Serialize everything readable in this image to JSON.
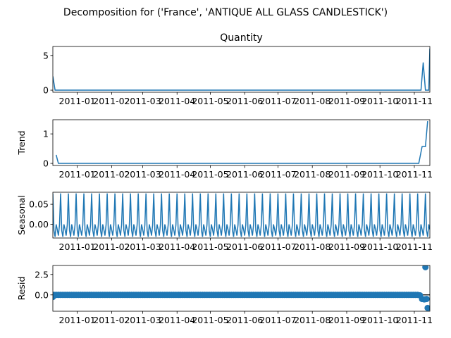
{
  "figure": {
    "suptitle": "Decomposition for ('France', 'ANTIQUE ALL GLASS CANDLESTICK')"
  },
  "chart_data": [
    {
      "type": "line",
      "name": "observed",
      "title": "Quantity",
      "ylabel": "",
      "color": "#1f77b4",
      "xlim": [
        "2010-12-10",
        "2011-11-15"
      ],
      "ylim": [
        -0.3,
        6.3
      ],
      "yticks": [
        {
          "value": 0,
          "label": "0"
        },
        {
          "value": 5,
          "label": "5"
        }
      ],
      "points": [
        {
          "x": "2010-12-10",
          "y": 2
        },
        {
          "x": "2010-12-12",
          "y": 0
        },
        {
          "x": "2011-11-07",
          "y": 0
        },
        {
          "x": "2011-11-09",
          "y": 4
        },
        {
          "x": "2011-11-11",
          "y": 0
        },
        {
          "x": "2011-11-14",
          "y": 0
        },
        {
          "x": "2011-11-15",
          "y": 6
        }
      ]
    },
    {
      "type": "line",
      "name": "trend",
      "title": "",
      "ylabel": "Trend",
      "color": "#1f77b4",
      "xlim": [
        "2010-12-10",
        "2011-11-15"
      ],
      "ylim": [
        -0.07,
        1.48
      ],
      "yticks": [
        {
          "value": 0,
          "label": "0"
        },
        {
          "value": 1,
          "label": "1"
        }
      ],
      "points": [
        {
          "x": "2010-12-13",
          "y": 0.29
        },
        {
          "x": "2010-12-14",
          "y": 0.14
        },
        {
          "x": "2010-12-15",
          "y": 0
        },
        {
          "x": "2011-11-05",
          "y": 0
        },
        {
          "x": "2011-11-08",
          "y": 0.57
        },
        {
          "x": "2011-11-11",
          "y": 0.57
        },
        {
          "x": "2011-11-13",
          "y": 1.43
        }
      ]
    },
    {
      "type": "line",
      "name": "seasonal",
      "title": "",
      "ylabel": "Seasonal",
      "color": "#1f77b4",
      "xlim": [
        "2010-12-10",
        "2011-11-15"
      ],
      "ylim": [
        -0.034,
        0.08
      ],
      "yticks": [
        {
          "value": 0,
          "label": "0.00"
        },
        {
          "value": 0.05,
          "label": "0.05"
        }
      ],
      "pattern": {
        "start": "2010-12-10",
        "end": "2011-11-15",
        "period_days": 7,
        "values": [
          0.077,
          -0.015,
          -0.031,
          0.0,
          -0.013,
          -0.028,
          -0.001
        ]
      }
    },
    {
      "type": "scatter",
      "name": "resid",
      "title": "",
      "ylabel": "Resid",
      "color": "#1f77b4",
      "xlim": [
        "2010-12-10",
        "2011-11-15"
      ],
      "ylim": [
        -2.0,
        3.6
      ],
      "yticks": [
        {
          "value": 0,
          "label": "0.0"
        },
        {
          "value": 2.5,
          "label": "2.5"
        }
      ],
      "zero_line": true,
      "baseline": {
        "start": "2010-12-11",
        "end": "2011-11-04",
        "step_days": 2,
        "y": 0
      },
      "points": [
        {
          "x": "2010-12-10",
          "y": -0.25
        },
        {
          "x": "2011-11-06",
          "y": -0.05
        },
        {
          "x": "2011-11-08",
          "y": -0.5
        },
        {
          "x": "2011-11-10",
          "y": -0.55
        },
        {
          "x": "2011-11-11",
          "y": 3.4
        },
        {
          "x": "2011-11-12",
          "y": -0.5
        },
        {
          "x": "2011-11-13",
          "y": -1.6
        }
      ]
    }
  ],
  "x_axis": {
    "ticks": [
      {
        "date": "2011-01-01",
        "label": "2011-01"
      },
      {
        "date": "2011-02-01",
        "label": "2011-02"
      },
      {
        "date": "2011-03-01",
        "label": "2011-03"
      },
      {
        "date": "2011-04-01",
        "label": "2011-04"
      },
      {
        "date": "2011-05-01",
        "label": "2011-05"
      },
      {
        "date": "2011-06-01",
        "label": "2011-06"
      },
      {
        "date": "2011-07-01",
        "label": "2011-07"
      },
      {
        "date": "2011-08-01",
        "label": "2011-08"
      },
      {
        "date": "2011-09-01",
        "label": "2011-09"
      },
      {
        "date": "2011-10-01",
        "label": "2011-10"
      },
      {
        "date": "2011-11-01",
        "label": "2011-11"
      }
    ]
  }
}
